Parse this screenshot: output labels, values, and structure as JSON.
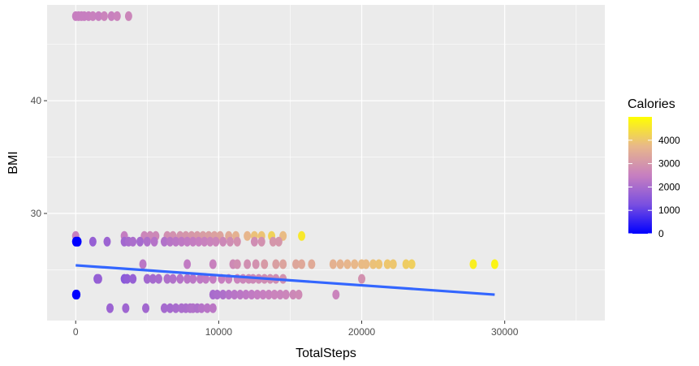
{
  "chart_data": {
    "type": "scatter",
    "xlabel": "TotalSteps",
    "ylabel": "BMI",
    "xlim": [
      -2000,
      37000
    ],
    "ylim": [
      20.5,
      48.5
    ],
    "x_ticks": [
      0,
      10000,
      20000,
      30000
    ],
    "x_tick_labels": [
      "0",
      "10000",
      "20000",
      "30000"
    ],
    "y_ticks": [
      30,
      40
    ],
    "y_tick_labels": [
      "30",
      "40"
    ],
    "grid": true,
    "colors": {
      "panel_bg": "#ebebeb",
      "grid": "#ffffff",
      "trend_line": "#3366ff",
      "low": "#0000ff",
      "high": "#ffff00"
    },
    "legend": {
      "title": "Calories",
      "position": "right",
      "range": [
        0,
        5000
      ],
      "breaks": [
        0,
        1000,
        2000,
        3000,
        4000
      ],
      "labels": [
        "0",
        "1000",
        "2000",
        "3000",
        "4000"
      ]
    },
    "trend_line": {
      "x": [
        0,
        29300
      ],
      "y": [
        25.4,
        22.8
      ]
    },
    "point_groups": [
      {
        "bmi": 47.5,
        "pts": [
          [
            0,
            2500
          ],
          [
            200,
            2500
          ],
          [
            400,
            2500
          ],
          [
            600,
            2500
          ],
          [
            900,
            2500
          ],
          [
            1200,
            2550
          ],
          [
            1600,
            2500
          ],
          [
            2000,
            2600
          ],
          [
            2500,
            2550
          ],
          [
            2900,
            2600
          ],
          [
            3700,
            2650
          ]
        ]
      },
      {
        "bmi": 28.0,
        "pts": [
          [
            0,
            2500
          ],
          [
            3400,
            2450
          ],
          [
            4800,
            2650
          ],
          [
            5200,
            2700
          ],
          [
            5600,
            2700
          ],
          [
            6400,
            2850
          ],
          [
            6800,
            2900
          ],
          [
            7300,
            2950
          ],
          [
            7700,
            3000
          ],
          [
            8100,
            3050
          ],
          [
            8500,
            3100
          ],
          [
            8900,
            3150
          ],
          [
            9300,
            3200
          ],
          [
            9700,
            3250
          ],
          [
            10100,
            3300
          ],
          [
            10700,
            3450
          ],
          [
            11200,
            3600
          ],
          [
            12000,
            3700
          ],
          [
            12500,
            3900
          ],
          [
            13000,
            3950
          ],
          [
            13700,
            4200
          ],
          [
            14500,
            3800
          ],
          [
            15800,
            4600
          ]
        ]
      },
      {
        "bmi": 27.5,
        "pts": [
          [
            0,
            0
          ],
          [
            80,
            0
          ],
          [
            160,
            0
          ],
          [
            1200,
            1700
          ],
          [
            2200,
            1800
          ],
          [
            3400,
            1900
          ],
          [
            3700,
            2000
          ],
          [
            4000,
            2050
          ],
          [
            4500,
            1950
          ],
          [
            5000,
            2100
          ],
          [
            5500,
            2200
          ],
          [
            6200,
            2150
          ],
          [
            6600,
            2250
          ],
          [
            7000,
            2300
          ],
          [
            7400,
            2350
          ],
          [
            7800,
            2400
          ],
          [
            8200,
            2450
          ],
          [
            8600,
            2500
          ],
          [
            9000,
            2550
          ],
          [
            9400,
            2600
          ],
          [
            9800,
            2650
          ],
          [
            10300,
            2700
          ],
          [
            10800,
            2800
          ],
          [
            11300,
            2900
          ],
          [
            12500,
            2800
          ],
          [
            13000,
            2900
          ],
          [
            13800,
            3000
          ],
          [
            14200,
            3000
          ]
        ]
      },
      {
        "bmi": 25.5,
        "pts": [
          [
            4700,
            2300
          ],
          [
            7800,
            2400
          ],
          [
            9600,
            2550
          ],
          [
            11000,
            2750
          ],
          [
            11300,
            2850
          ],
          [
            12000,
            2850
          ],
          [
            12600,
            2900
          ],
          [
            13200,
            3100
          ],
          [
            14000,
            3200
          ],
          [
            14500,
            3300
          ],
          [
            15400,
            3350
          ],
          [
            15800,
            3400
          ],
          [
            16500,
            3450
          ],
          [
            18000,
            3600
          ],
          [
            18500,
            3650
          ],
          [
            19000,
            3700
          ],
          [
            19500,
            3750
          ],
          [
            20000,
            3800
          ],
          [
            20300,
            3800
          ],
          [
            20800,
            3900
          ],
          [
            21200,
            3950
          ],
          [
            21800,
            4000
          ],
          [
            22200,
            4000
          ],
          [
            23100,
            4100
          ],
          [
            23500,
            4150
          ],
          [
            27800,
            4700
          ],
          [
            29300,
            4800
          ]
        ]
      },
      {
        "bmi": 24.2,
        "pts": [
          [
            1500,
            1600
          ],
          [
            1600,
            1700
          ],
          [
            3400,
            1500
          ],
          [
            3600,
            1600
          ],
          [
            4000,
            1700
          ],
          [
            5000,
            1900
          ],
          [
            5400,
            1950
          ],
          [
            5800,
            2000
          ],
          [
            6400,
            2100
          ],
          [
            6800,
            2150
          ],
          [
            7300,
            2200
          ],
          [
            7800,
            2250
          ],
          [
            8200,
            2300
          ],
          [
            8700,
            2350
          ],
          [
            9100,
            2400
          ],
          [
            9600,
            2450
          ],
          [
            10200,
            2500
          ],
          [
            10700,
            2550
          ],
          [
            11300,
            2600
          ],
          [
            11700,
            2650
          ],
          [
            12100,
            2700
          ],
          [
            12400,
            2700
          ],
          [
            12800,
            2750
          ],
          [
            13200,
            2800
          ],
          [
            13600,
            2850
          ],
          [
            14000,
            2800
          ],
          [
            14500,
            2900
          ],
          [
            20000,
            2900
          ]
        ]
      },
      {
        "bmi": 22.8,
        "pts": [
          [
            0,
            0
          ],
          [
            80,
            0
          ],
          [
            9600,
            2000
          ],
          [
            9900,
            2050
          ],
          [
            10300,
            2100
          ],
          [
            10700,
            2200
          ],
          [
            11100,
            2250
          ],
          [
            11500,
            2300
          ],
          [
            11900,
            2350
          ],
          [
            12300,
            2400
          ],
          [
            12700,
            2450
          ],
          [
            13100,
            2500
          ],
          [
            13500,
            2550
          ],
          [
            13900,
            2600
          ],
          [
            14300,
            2600
          ],
          [
            14700,
            2650
          ],
          [
            15200,
            2700
          ],
          [
            15600,
            2750
          ],
          [
            18200,
            2600
          ]
        ]
      },
      {
        "bmi": 21.6,
        "pts": [
          [
            2400,
            1800
          ],
          [
            3500,
            1850
          ],
          [
            4900,
            1900
          ],
          [
            6200,
            1950
          ],
          [
            6600,
            1950
          ],
          [
            7000,
            2000
          ],
          [
            7400,
            2050
          ],
          [
            7700,
            2050
          ],
          [
            8000,
            2100
          ],
          [
            8200,
            2150
          ],
          [
            8500,
            2100
          ],
          [
            8800,
            2200
          ],
          [
            9200,
            2250
          ],
          [
            9600,
            2300
          ]
        ]
      }
    ]
  }
}
